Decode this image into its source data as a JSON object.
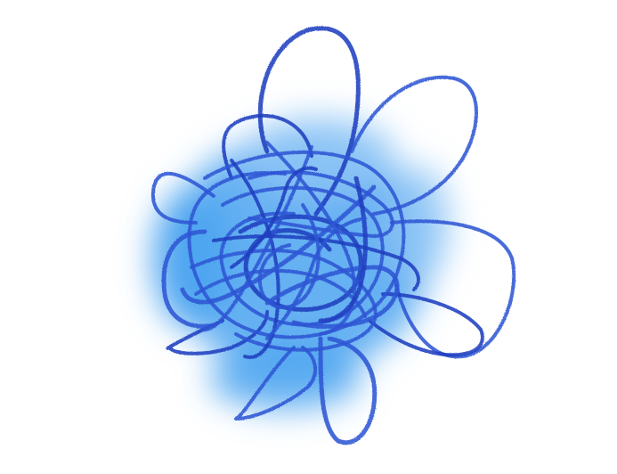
{
  "drawing": {
    "background_color": "#ffffff",
    "wash_color": "#4aa3f0",
    "wash_color_light": "#8fc6f6",
    "stroke_color": "#2f55d4",
    "stroke_color_dark": "#1f3fbf",
    "subject": "blue-scribble-ball"
  }
}
